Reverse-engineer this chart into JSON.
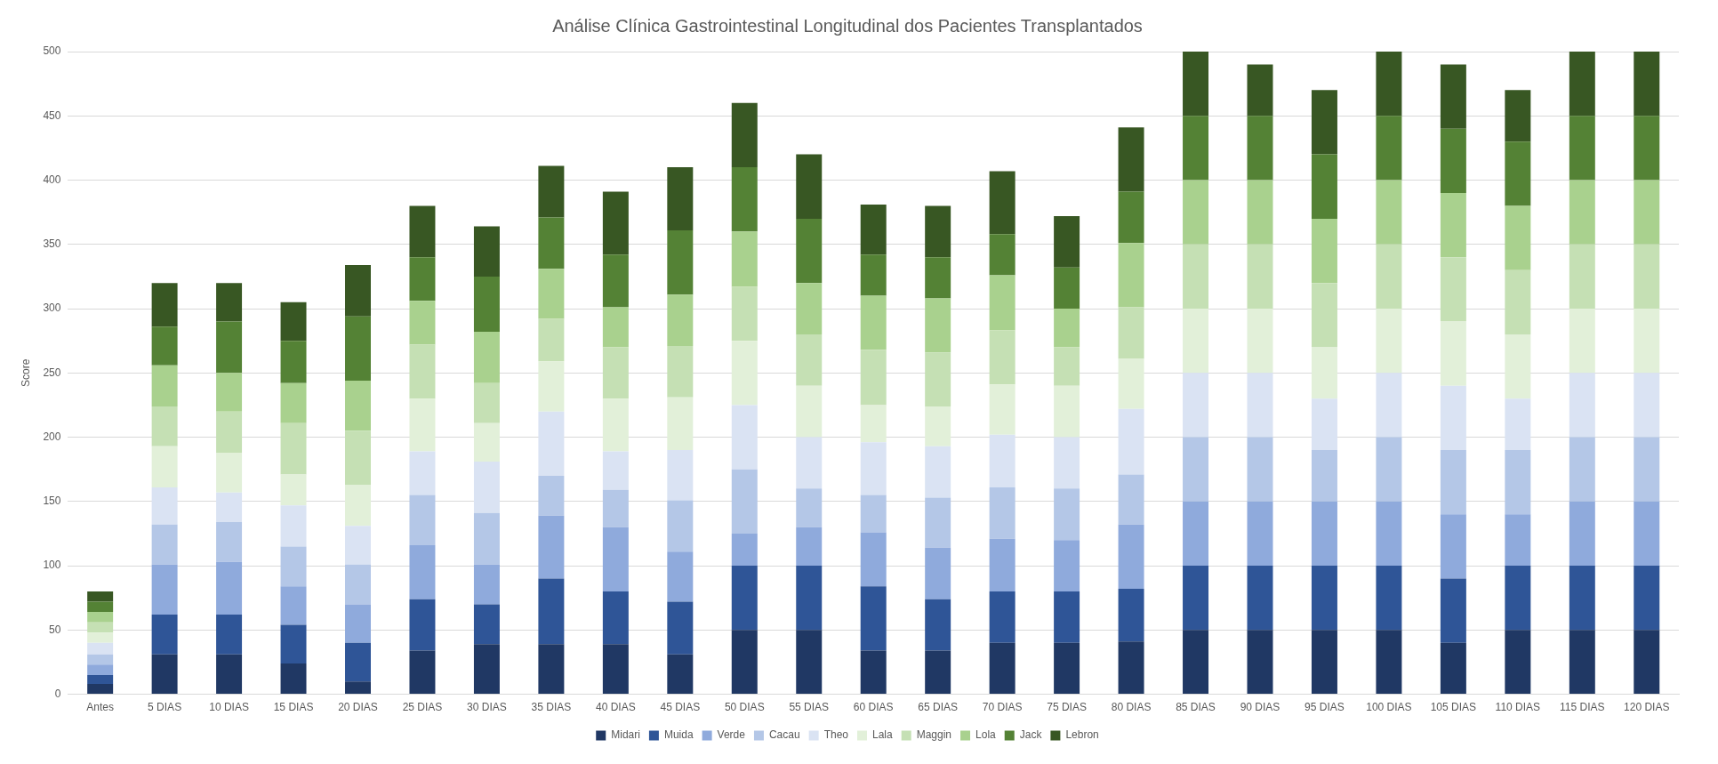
{
  "chart_data": {
    "type": "bar",
    "title": "Análise Clínica Gastrointestinal Longitudinal dos Pacientes Transplantados",
    "ylabel": "Score",
    "stacked": true,
    "grid": "y",
    "legend": "bottom",
    "ylim": [
      0,
      500
    ],
    "yticks": [
      0,
      50,
      100,
      150,
      200,
      250,
      300,
      350,
      400,
      450,
      500
    ],
    "categories": [
      "Antes",
      "5 DIAS",
      "10 DIAS",
      "15 DIAS",
      "20 DIAS",
      "25 DIAS",
      "30 DIAS",
      "35 DIAS",
      "40 DIAS",
      "45 DIAS",
      "50 DIAS",
      "55 DIAS",
      "60 DIAS",
      "65 DIAS",
      "70 DIAS",
      "75 DIAS",
      "80 DIAS",
      "85 DIAS",
      "90 DIAS",
      "95 DIAS",
      "100 DIAS",
      "105 DIAS",
      "110 DIAS",
      "115 DIAS",
      "120 DIAS"
    ],
    "series": [
      {
        "name": "Midari",
        "color": "#203864",
        "values": [
          8,
          31,
          31,
          24,
          10,
          34,
          39,
          39,
          39,
          31,
          50,
          50,
          34,
          34,
          40,
          40,
          41,
          50,
          50,
          50,
          50,
          40,
          50,
          50,
          50
        ]
      },
      {
        "name": "Muida",
        "color": "#2f5597",
        "values": [
          7,
          31,
          31,
          30,
          30,
          40,
          31,
          51,
          41,
          41,
          50,
          50,
          50,
          40,
          40,
          40,
          41,
          50,
          50,
          50,
          50,
          50,
          50,
          50,
          50
        ]
      },
      {
        "name": "Verde",
        "color": "#8faadc",
        "values": [
          8,
          39,
          41,
          30,
          30,
          42,
          31,
          49,
          50,
          39,
          25,
          30,
          42,
          40,
          41,
          40,
          50,
          50,
          50,
          50,
          50,
          50,
          40,
          50,
          50
        ]
      },
      {
        "name": "Cacau",
        "color": "#b4c7e7",
        "values": [
          8,
          31,
          31,
          31,
          31,
          39,
          40,
          31,
          29,
          40,
          50,
          30,
          29,
          39,
          40,
          40,
          39,
          50,
          50,
          40,
          50,
          50,
          50,
          50,
          50
        ]
      },
      {
        "name": "Theo",
        "color": "#dae3f3",
        "values": [
          9,
          29,
          23,
          32,
          30,
          34,
          40,
          50,
          30,
          39,
          50,
          40,
          41,
          40,
          41,
          40,
          51,
          50,
          50,
          40,
          50,
          50,
          40,
          50,
          50
        ]
      },
      {
        "name": "Lala",
        "color": "#e2f0d9",
        "values": [
          8,
          32,
          31,
          24,
          32,
          41,
          30,
          39,
          41,
          41,
          50,
          40,
          29,
          31,
          39,
          40,
          39,
          50,
          50,
          40,
          50,
          50,
          50,
          50,
          50
        ]
      },
      {
        "name": "Maggin",
        "color": "#c5e0b4",
        "values": [
          8,
          31,
          32,
          40,
          42,
          42,
          31,
          33,
          40,
          40,
          42,
          40,
          43,
          42,
          42,
          30,
          40,
          50,
          50,
          50,
          50,
          50,
          50,
          50,
          50
        ]
      },
      {
        "name": "Lola",
        "color": "#a9d18e",
        "values": [
          8,
          32,
          30,
          31,
          39,
          34,
          40,
          39,
          31,
          40,
          43,
          40,
          42,
          42,
          43,
          30,
          50,
          50,
          50,
          50,
          50,
          50,
          50,
          50,
          50
        ]
      },
      {
        "name": "Jack",
        "color": "#548235",
        "values": [
          8,
          30,
          40,
          33,
          50,
          34,
          43,
          40,
          41,
          50,
          50,
          50,
          32,
          32,
          32,
          32,
          40,
          50,
          50,
          50,
          50,
          50,
          50,
          50,
          50
        ]
      },
      {
        "name": "Lebron",
        "color": "#385723",
        "values": [
          8,
          34,
          30,
          30,
          40,
          40,
          39,
          40,
          49,
          49,
          50,
          50,
          39,
          40,
          49,
          40,
          50,
          50,
          40,
          50,
          50,
          50,
          40,
          50,
          50
        ]
      }
    ]
  }
}
